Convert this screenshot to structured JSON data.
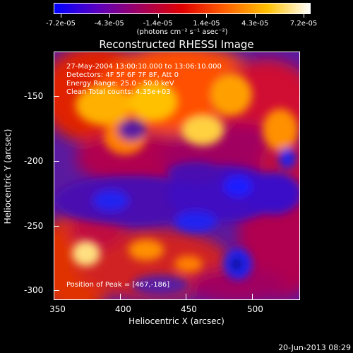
{
  "colorbar": {
    "labels": [
      "-7.2e-05",
      "-4.3e-05",
      "-1.4e-05",
      "1.4e-05",
      "4.3e-05",
      "7.2e-05"
    ],
    "units": "(photons cm⁻² s⁻¹ asec⁻²)",
    "colors": [
      "#0000ff",
      "#5a00c0",
      "#a00060",
      "#e00000",
      "#ff6000",
      "#ffc000",
      "#ffffff"
    ]
  },
  "title": "Reconstructed RHESSI Image",
  "info": {
    "line1": "27-May-2004 13:00:10.000 to 13:06:10.000",
    "line2": "Detectors: 4F 5F 6F 7F 8F, Att 0",
    "line3": "Energy Range: 25.0 - 50.0 keV",
    "line4": "Clean     Total counts: 4.35e+03",
    "peak": "Position of Peak = [467,-186]"
  },
  "axes": {
    "xlabel": "Heliocentric X (arcsec)",
    "ylabel": "Heliocentric Y (arcsec)",
    "xticks": [
      "350",
      "400",
      "450",
      "500"
    ],
    "yticks": [
      "-150",
      "-200",
      "-250",
      "-300"
    ],
    "xrange": [
      350,
      535
    ],
    "yrange": [
      -310,
      -125
    ]
  },
  "timestamp": "20-Jun-2013 08:29"
}
